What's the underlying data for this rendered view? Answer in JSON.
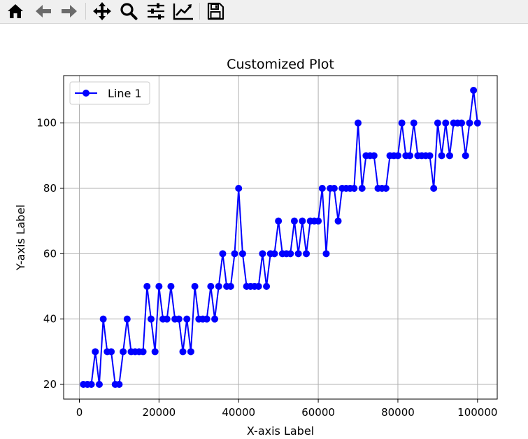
{
  "toolbar": {
    "buttons": [
      {
        "name": "home",
        "icon": "home-icon"
      },
      {
        "name": "back",
        "icon": "back-arrow-icon"
      },
      {
        "name": "forward",
        "icon": "forward-arrow-icon"
      },
      {
        "name": "pan",
        "icon": "move-icon"
      },
      {
        "name": "zoom",
        "icon": "magnifier-icon"
      },
      {
        "name": "configure-subplots",
        "icon": "sliders-icon"
      },
      {
        "name": "edit-axis",
        "icon": "line-chart-icon"
      },
      {
        "name": "save",
        "icon": "floppy-disk-icon"
      }
    ]
  },
  "chart_data": {
    "type": "line",
    "title": "Customized Plot",
    "xlabel": "X-axis Label",
    "ylabel": "Y-axis Label",
    "xlim": [
      -3950,
      104950
    ],
    "ylim": [
      15.5,
      114.5
    ],
    "xticks": [
      0,
      20000,
      40000,
      60000,
      80000,
      100000
    ],
    "xtick_labels": [
      "0",
      "20000",
      "40000",
      "60000",
      "80000",
      "100000"
    ],
    "yticks": [
      20,
      40,
      60,
      80,
      100
    ],
    "ytick_labels": [
      "20",
      "40",
      "60",
      "80",
      "100"
    ],
    "grid": true,
    "legend": {
      "position": "upper-left",
      "entries": [
        "Line 1"
      ]
    },
    "series": [
      {
        "name": "Line 1",
        "color": "#0000ff",
        "marker": "circle",
        "x": [
          1000,
          2000,
          3000,
          4000,
          5000,
          6000,
          7000,
          8000,
          9000,
          10000,
          11000,
          12000,
          13000,
          14000,
          15000,
          16000,
          17000,
          18000,
          19000,
          20000,
          21000,
          22000,
          23000,
          24000,
          25000,
          26000,
          27000,
          28000,
          29000,
          30000,
          31000,
          32000,
          33000,
          34000,
          35000,
          36000,
          37000,
          38000,
          39000,
          40000,
          41000,
          42000,
          43000,
          44000,
          45000,
          46000,
          47000,
          48000,
          49000,
          50000,
          51000,
          52000,
          53000,
          54000,
          55000,
          56000,
          57000,
          58000,
          59000,
          60000,
          61000,
          62000,
          63000,
          64000,
          65000,
          66000,
          67000,
          68000,
          69000,
          70000,
          71000,
          72000,
          73000,
          74000,
          75000,
          76000,
          77000,
          78000,
          79000,
          80000,
          81000,
          82000,
          83000,
          84000,
          85000,
          86000,
          87000,
          88000,
          89000,
          90000,
          91000,
          92000,
          93000,
          94000,
          95000,
          96000,
          97000,
          98000,
          99000,
          100000
        ],
        "y": [
          20,
          20,
          20,
          30,
          20,
          40,
          30,
          30,
          20,
          20,
          30,
          40,
          30,
          30,
          30,
          30,
          50,
          40,
          30,
          50,
          40,
          40,
          50,
          40,
          40,
          30,
          40,
          30,
          50,
          40,
          40,
          40,
          50,
          40,
          50,
          60,
          50,
          50,
          60,
          80,
          60,
          50,
          50,
          50,
          50,
          60,
          50,
          60,
          60,
          70,
          60,
          60,
          60,
          70,
          60,
          70,
          60,
          70,
          70,
          70,
          80,
          60,
          80,
          80,
          70,
          80,
          80,
          80,
          80,
          100,
          80,
          90,
          90,
          90,
          80,
          80,
          80,
          90,
          90,
          90,
          100,
          90,
          90,
          100,
          90,
          90,
          90,
          90,
          80,
          100,
          90,
          100,
          90,
          100,
          100,
          100,
          90,
          100,
          110,
          100
        ]
      }
    ]
  }
}
